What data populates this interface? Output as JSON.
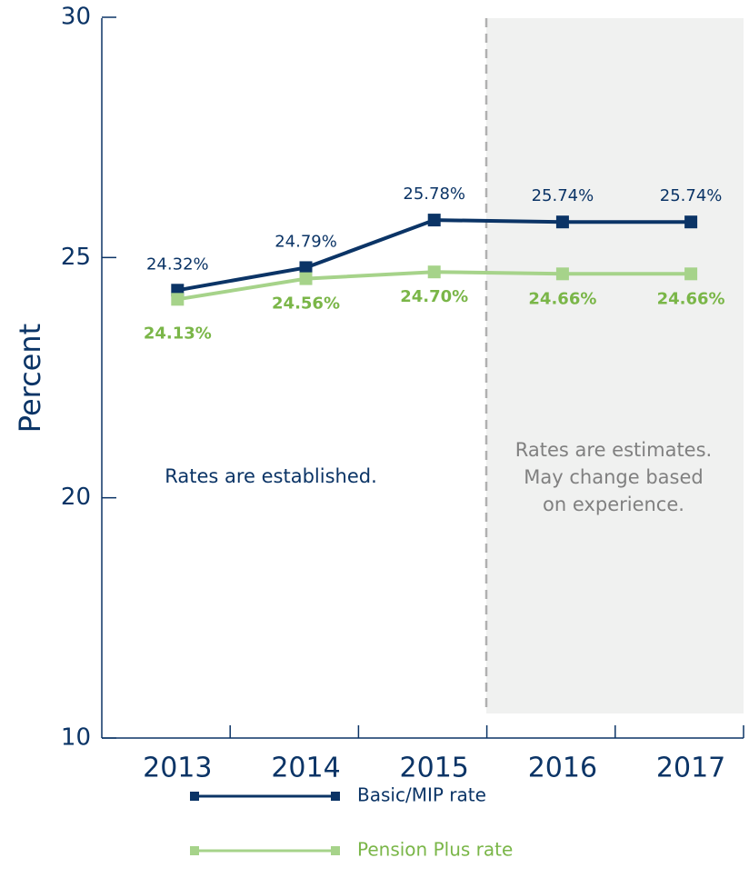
{
  "chart_data": {
    "type": "line",
    "y_label": "Percent",
    "categories": [
      "2013",
      "2014",
      "2015",
      "2016",
      "2017"
    ],
    "series": [
      {
        "name": "Basic/MIP rate",
        "color": "#0b3466",
        "values": [
          24.32,
          24.79,
          25.78,
          25.74,
          25.74
        ],
        "value_labels": [
          "24.32%",
          "24.79%",
          "25.78%",
          "25.74%",
          "25.74%"
        ]
      },
      {
        "name": "Pension Plus rate",
        "color": "#a6d38a",
        "label_color": "#7ab648",
        "values": [
          24.13,
          24.56,
          24.7,
          24.66,
          24.66
        ],
        "value_labels": [
          "24.13%",
          "24.56%",
          "24.70%",
          "24.66%",
          "24.66%"
        ]
      }
    ],
    "ylim": [
      10,
      30
    ],
    "yticks": [
      10,
      20,
      25,
      30
    ],
    "ybreak": [
      10,
      15
    ],
    "annotations": [
      [
        "Rates are established."
      ],
      [
        "Rates are estimates.",
        "May change based",
        "on experience."
      ]
    ]
  }
}
